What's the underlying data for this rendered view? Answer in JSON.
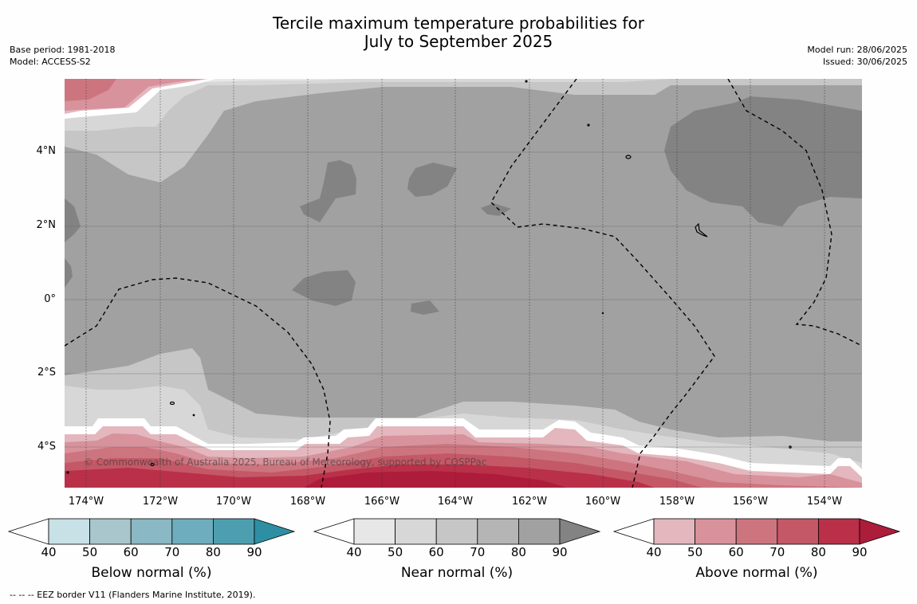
{
  "title": {
    "line1": "Tercile maximum temperature probabilities for",
    "line2": "July to September 2025"
  },
  "meta_left": {
    "base_period": "Base period: 1981-2018",
    "model": "Model: ACCESS-S2"
  },
  "meta_right": {
    "model_run": "Model run: 28/06/2025",
    "issued": "Issued: 30/06/2025"
  },
  "map": {
    "lat_labels": [
      "4°N",
      "2°N",
      "0°",
      "2°S",
      "4°S"
    ],
    "lon_labels": [
      "174°W",
      "172°W",
      "170°W",
      "168°W",
      "166°W",
      "164°W",
      "162°W",
      "160°W",
      "158°W",
      "156°W",
      "154°W"
    ],
    "copyright": "© Commonwealth of Australia 2025, Bureau of Meteorology, supported by COSPPac"
  },
  "colorbars": [
    {
      "title": "Below normal (%)",
      "ticks": [
        "40",
        "50",
        "60",
        "70",
        "80",
        "90"
      ],
      "colors": [
        "#ffffff",
        "#c7e1e7",
        "#a8c6cc",
        "#8ab8c4",
        "#6eadbd",
        "#4d9fb0",
        "#2e8fa3"
      ]
    },
    {
      "title": "Near normal (%)",
      "ticks": [
        "40",
        "50",
        "60",
        "70",
        "80",
        "90"
      ],
      "colors": [
        "#ffffff",
        "#e7e7e7",
        "#d7d7d7",
        "#c6c6c6",
        "#b5b5b5",
        "#a1a1a1",
        "#838383"
      ]
    },
    {
      "title": "Above normal (%)",
      "ticks": [
        "40",
        "50",
        "60",
        "70",
        "80",
        "90"
      ],
      "colors": [
        "#ffffff",
        "#e3b7bd",
        "#d8929c",
        "#cd757f",
        "#c45866",
        "#b93048",
        "#ad1c3a"
      ]
    }
  ],
  "footnote": "--  --  -- EEZ border V11 (Flanders Marine Institute, 2019)."
}
